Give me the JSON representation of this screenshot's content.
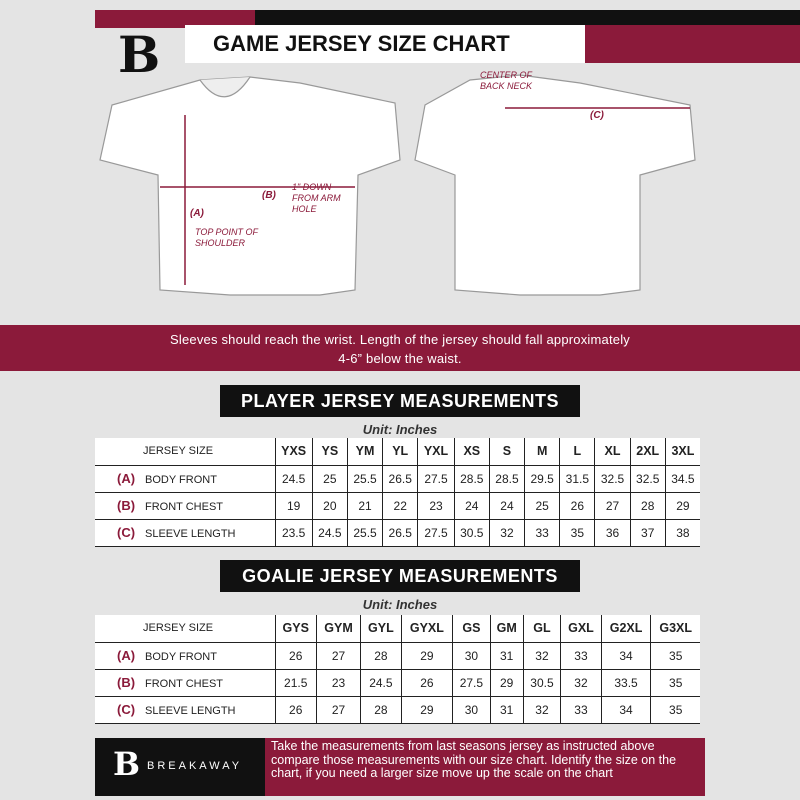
{
  "header": {
    "title": "GAME JERSEY SIZE CHART",
    "logo_letter": "B"
  },
  "diagram": {
    "center_back_neck": "CENTER OF BACK NECK",
    "label_a": "(A)",
    "label_b": "(B)",
    "label_c": "(C)",
    "top_point": "TOP POINT OF SHOULDER",
    "one_inch_down": "1\" DOWN FROM ARM HOLE"
  },
  "banner": {
    "text": "Sleeves should reach the wrist. Length of the jersey should fall approximately 4-6” below the waist."
  },
  "player": {
    "heading": "PLAYER JERSEY MEASUREMENTS",
    "unit": "Unit: Inches",
    "size_label": "JERSEY SIZE",
    "sizes": [
      "YXS",
      "YS",
      "YM",
      "YL",
      "YXL",
      "XS",
      "S",
      "M",
      "L",
      "XL",
      "2XL",
      "3XL"
    ],
    "rows": [
      {
        "letter": "(A)",
        "label": "BODY FRONT",
        "values": [
          "24.5",
          "25",
          "25.5",
          "26.5",
          "27.5",
          "28.5",
          "28.5",
          "29.5",
          "31.5",
          "32.5",
          "32.5",
          "34.5"
        ]
      },
      {
        "letter": "(B)",
        "label": "FRONT CHEST",
        "values": [
          "19",
          "20",
          "21",
          "22",
          "23",
          "24",
          "24",
          "25",
          "26",
          "27",
          "28",
          "29"
        ]
      },
      {
        "letter": "(C)",
        "label": "SLEEVE LENGTH",
        "values": [
          "23.5",
          "24.5",
          "25.5",
          "26.5",
          "27.5",
          "30.5",
          "32",
          "33",
          "35",
          "36",
          "37",
          "38"
        ]
      }
    ]
  },
  "goalie": {
    "heading": "GOALIE JERSEY MEASUREMENTS",
    "unit": "Unit: Inches",
    "size_label": "JERSEY SIZE",
    "sizes": [
      "GYS",
      "GYM",
      "GYL",
      "GYXL",
      "GS",
      "GM",
      "GL",
      "GXL",
      "G2XL",
      "G3XL"
    ],
    "rows": [
      {
        "letter": "(A)",
        "label": "BODY FRONT",
        "values": [
          "26",
          "27",
          "28",
          "29",
          "30",
          "31",
          "32",
          "33",
          "34",
          "35"
        ]
      },
      {
        "letter": "(B)",
        "label": "FRONT CHEST",
        "values": [
          "21.5",
          "23",
          "24.5",
          "26",
          "27.5",
          "29",
          "30.5",
          "32",
          "33.5",
          "35"
        ]
      },
      {
        "letter": "(C)",
        "label": "SLEEVE LENGTH",
        "values": [
          "26",
          "27",
          "28",
          "29",
          "30",
          "31",
          "32",
          "33",
          "34",
          "35"
        ]
      }
    ]
  },
  "footer": {
    "brand": "BREAKAWAY",
    "text": "Take the measurements from last seasons jersey as instructed above compare those measurements  with our size chart. Identify the size on the chart, if you need a larger size move up the scale on the chart"
  },
  "colors": {
    "accent": "#8b1a3a",
    "dark": "#111111",
    "background": "#e4e4e4"
  }
}
